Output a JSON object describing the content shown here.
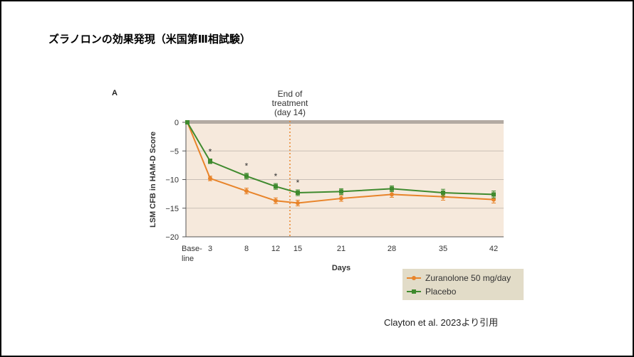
{
  "slide": {
    "title": "ズラノロンの効果発現（米国第Ⅲ相試験）",
    "panel_letter": "A",
    "citation": "Clayton et al. 2023より引用"
  },
  "colors": {
    "zuranolone": "#e8842a",
    "placebo": "#3f8a2e",
    "plot_bg": "#f6e9dc",
    "legend_bg": "#e2dcc8",
    "zero_band": "#b3aaa2",
    "grid": "#c9bfb5",
    "end_line": "#e8842a"
  },
  "chart_data": {
    "type": "line",
    "xlabel": "Days",
    "ylabel": "LSM CFB in HAM-D Score",
    "ylim": [
      -20,
      0
    ],
    "yticks": [
      0,
      -5,
      -10,
      -15,
      -20
    ],
    "ytick_labels": [
      "0",
      "−5",
      "−10",
      "−15",
      "−20"
    ],
    "x": [
      0,
      3,
      8,
      12,
      15,
      21,
      28,
      35,
      42
    ],
    "xtick_labels": [
      "Base-\nline",
      "3",
      "8",
      "12",
      "15",
      "21",
      "28",
      "35",
      "42"
    ],
    "series": [
      {
        "name": "Zuranolone 50 mg/day",
        "color": "#e8842a",
        "marker": "circle",
        "values": [
          0,
          -9.8,
          -12.0,
          -13.7,
          -14.1,
          -13.3,
          -12.6,
          -13.0,
          -13.5
        ],
        "errors": [
          0,
          0.4,
          0.5,
          0.5,
          0.5,
          0.5,
          0.5,
          0.6,
          0.6
        ]
      },
      {
        "name": "Placebo",
        "color": "#3f8a2e",
        "marker": "square",
        "values": [
          0,
          -6.8,
          -9.4,
          -11.2,
          -12.3,
          -12.1,
          -11.6,
          -12.3,
          -12.6
        ],
        "errors": [
          0,
          0.4,
          0.5,
          0.5,
          0.5,
          0.5,
          0.5,
          0.6,
          0.6
        ]
      }
    ],
    "significance_marker": "*",
    "significance_x": [
      3,
      8,
      12,
      15
    ],
    "end_of_treatment": {
      "x": 14,
      "label_lines": [
        "End of",
        "treatment",
        "(day 14)"
      ]
    },
    "legend_position": "bottom-right"
  }
}
